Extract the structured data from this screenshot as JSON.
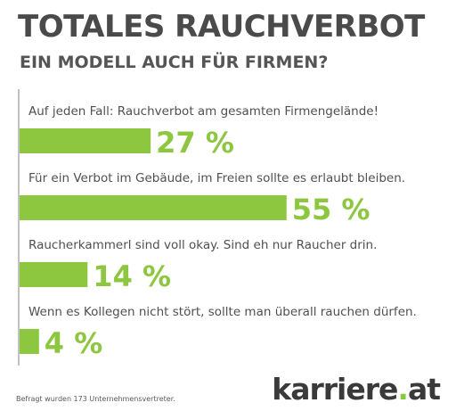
{
  "header": {
    "title": "TOTALES RAUCHVERBOT",
    "subtitle": "EIN MODELL AUCH FÜR FIRMEN?"
  },
  "chart_data": {
    "type": "bar",
    "orientation": "horizontal",
    "categories": [
      "Auf jeden Fall: Rauchverbot am gesamten Firmengelände!",
      "Für ein Verbot im Gebäude, im Freien sollte es erlaubt bleiben.",
      "Raucherkammerl sind voll okay. Sind eh nur Raucher drin.",
      "Wenn es Kollegen nicht stört, sollte man überall rauchen dürfen."
    ],
    "values": [
      27,
      55,
      14,
      4
    ],
    "value_labels": [
      "27 %",
      "55 %",
      "14 %",
      "4 %"
    ],
    "unit": "%",
    "xlim": [
      0,
      100
    ],
    "grid": false,
    "bar_color": "#8dc63f"
  },
  "footer": {
    "note": "Befragt wurden 173 Unternehmensvertreter.",
    "logo_main": "karriere",
    "logo_dot": ".",
    "logo_tld": "at"
  }
}
